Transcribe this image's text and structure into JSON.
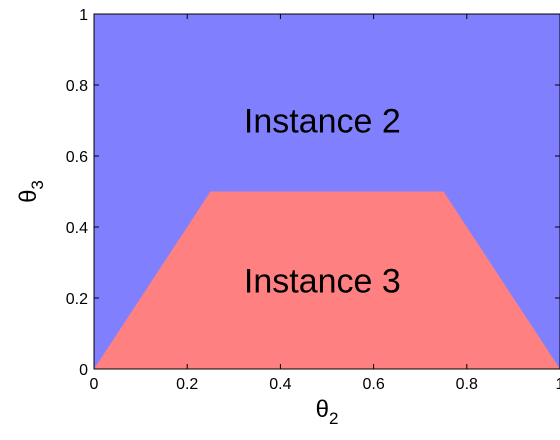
{
  "chart_data": {
    "type": "area",
    "xlabel": "θ",
    "xlabel_subscript": "2",
    "ylabel": "θ",
    "ylabel_subscript": "3",
    "xlim": [
      0,
      1
    ],
    "ylim": [
      0,
      1
    ],
    "x_ticks": [
      0,
      0.2,
      0.4,
      0.6,
      0.8,
      1
    ],
    "x_tick_labels": [
      "0",
      "0.2",
      "0.4",
      "0.6",
      "0.8",
      "1"
    ],
    "y_ticks": [
      0,
      0.2,
      0.4,
      0.6,
      0.8,
      1
    ],
    "y_tick_labels": [
      "0",
      "0.2",
      "0.4",
      "0.6",
      "0.8",
      "1"
    ],
    "grid": false,
    "regions": [
      {
        "label": "Instance 2",
        "color": "#8080ff",
        "polygon": [
          [
            0,
            0
          ],
          [
            1,
            0
          ],
          [
            1,
            1
          ],
          [
            0,
            1
          ]
        ],
        "label_at": [
          0.49,
          0.7
        ]
      },
      {
        "label": "Instance 3",
        "color": "#ff8080",
        "polygon": [
          [
            0,
            0
          ],
          [
            0.25,
            0.5
          ],
          [
            0.75,
            0.5
          ],
          [
            1,
            0
          ]
        ],
        "label_at": [
          0.49,
          0.25
        ]
      }
    ]
  }
}
